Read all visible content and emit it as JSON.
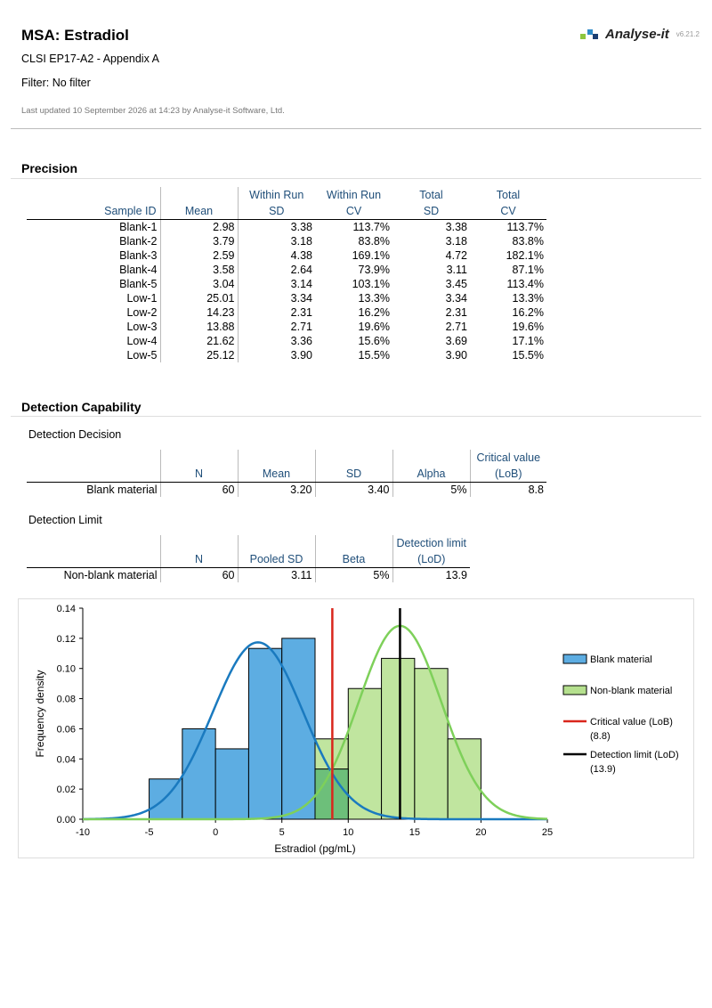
{
  "header": {
    "title": "MSA: Estradiol",
    "subtitle": "CLSI EP17-A2 - Appendix A",
    "filter": "Filter: No filter",
    "updated": "Last updated 10 September 2026 at 14:23 by Analyse-it Software, Ltd.",
    "logo_text": "Analyse-it",
    "version": "v6.21.2",
    "logo_colors": [
      "#8dc63f",
      "#2e8bc9",
      "#1a3e72"
    ]
  },
  "precision": {
    "heading": "Precision",
    "headers_top": [
      "",
      "",
      "Within Run",
      "Within Run",
      "Total",
      "Total"
    ],
    "headers_bottom": [
      "Sample ID",
      "Mean",
      "SD",
      "CV",
      "SD",
      "CV"
    ],
    "rows": [
      [
        "Blank-1",
        "2.98",
        "3.38",
        "113.7%",
        "3.38",
        "113.7%"
      ],
      [
        "Blank-2",
        "3.79",
        "3.18",
        "83.8%",
        "3.18",
        "83.8%"
      ],
      [
        "Blank-3",
        "2.59",
        "4.38",
        "169.1%",
        "4.72",
        "182.1%"
      ],
      [
        "Blank-4",
        "3.58",
        "2.64",
        "73.9%",
        "3.11",
        "87.1%"
      ],
      [
        "Blank-5",
        "3.04",
        "3.14",
        "103.1%",
        "3.45",
        "113.4%"
      ],
      [
        "Low-1",
        "25.01",
        "3.34",
        "13.3%",
        "3.34",
        "13.3%"
      ],
      [
        "Low-2",
        "14.23",
        "2.31",
        "16.2%",
        "2.31",
        "16.2%"
      ],
      [
        "Low-3",
        "13.88",
        "2.71",
        "19.6%",
        "2.71",
        "19.6%"
      ],
      [
        "Low-4",
        "21.62",
        "3.36",
        "15.6%",
        "3.69",
        "17.1%"
      ],
      [
        "Low-5",
        "25.12",
        "3.90",
        "15.5%",
        "3.90",
        "15.5%"
      ]
    ]
  },
  "detection": {
    "heading": "Detection Capability",
    "decision": {
      "label": "Detection Decision",
      "headers_top": [
        "",
        "",
        "",
        "",
        "",
        "Critical value"
      ],
      "headers_bottom": [
        "",
        "N",
        "Mean",
        "SD",
        "Alpha",
        "(LoB)"
      ],
      "rows": [
        [
          "Blank material",
          "60",
          "3.20",
          "3.40",
          "5%",
          "8.8"
        ]
      ]
    },
    "limit": {
      "label": "Detection Limit",
      "headers_top": [
        "",
        "",
        "",
        "",
        "Detection limit"
      ],
      "headers_bottom": [
        "",
        "N",
        "Pooled SD",
        "Beta",
        "(LoD)"
      ],
      "rows": [
        [
          "Non-blank material",
          "60",
          "3.11",
          "5%",
          "13.9"
        ]
      ]
    }
  },
  "chart_data": {
    "type": "bar",
    "xlabel": "Estradiol (pg/mL)",
    "ylabel": "Frequency density",
    "xlim": [
      -10,
      25
    ],
    "ylim": [
      0,
      0.14
    ],
    "xticks": [
      "-10",
      "-5",
      "0",
      "5",
      "10",
      "15",
      "20",
      "25"
    ],
    "yticks": [
      "0.00",
      "0.02",
      "0.04",
      "0.06",
      "0.08",
      "0.10",
      "0.12",
      "0.14"
    ],
    "series": [
      {
        "name": "Blank material",
        "color": "#5dade2",
        "bins": [
          [
            -5,
            -2.5,
            0.0267
          ],
          [
            -2.5,
            0,
            0.06
          ],
          [
            0,
            2.5,
            0.0467
          ],
          [
            2.5,
            5,
            0.1133
          ],
          [
            5,
            7.5,
            0.12
          ],
          [
            7.5,
            10,
            0.0333
          ]
        ],
        "curve": {
          "mean": 3.2,
          "sd": 3.4,
          "color": "#1a7abf"
        }
      },
      {
        "name": "Non-blank material",
        "color": "#b5e08e",
        "bins": [
          [
            7.5,
            10,
            0.0533
          ],
          [
            10,
            12.5,
            0.0867
          ],
          [
            12.5,
            15,
            0.1067
          ],
          [
            15,
            17.5,
            0.1
          ],
          [
            17.5,
            20,
            0.0533
          ]
        ],
        "curve": {
          "mean": 13.9,
          "sd": 3.11,
          "color": "#7ed05a"
        }
      }
    ],
    "overlap_color": "#6dbf7a",
    "lines": [
      {
        "name": "Critical value (LoB)",
        "value_label": "(8.8)",
        "x": 8.8,
        "color": "#d9261c"
      },
      {
        "name": "Detection limit (LoD)",
        "value_label": "(13.9)",
        "x": 13.9,
        "color": "#000000"
      }
    ],
    "legend_position": "right"
  }
}
